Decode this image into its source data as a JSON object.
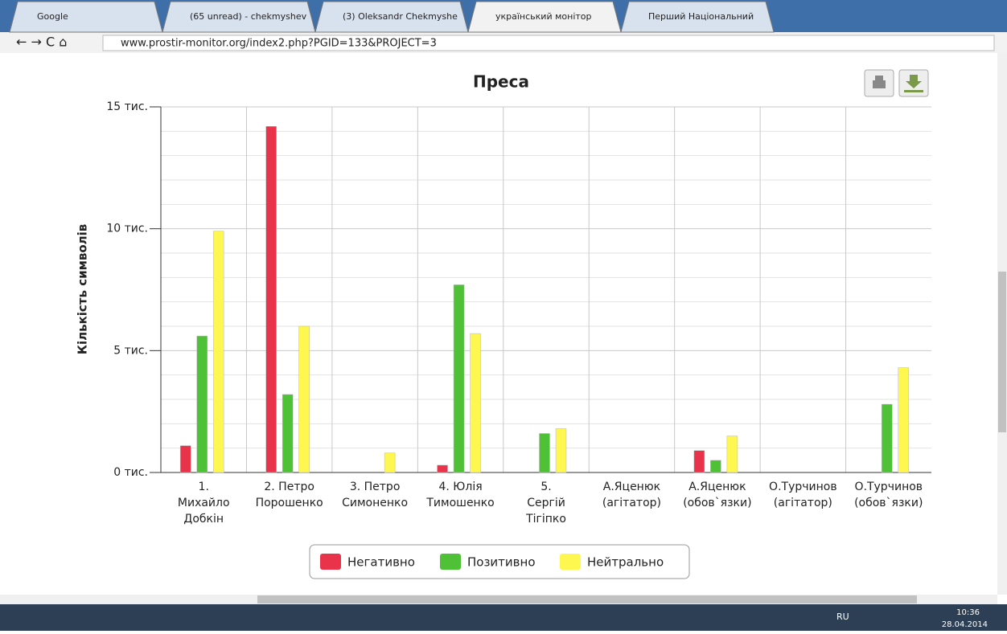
{
  "browser": {
    "tabs": [
      "Google",
      "(65 unread) - chekmyshev",
      "(3) Oleksandr Chekmyshe",
      "український монітор",
      "Перший Національний"
    ],
    "url": "www.prostir-monitor.org/index2.php?PGID=133&PROJECT=3"
  },
  "taskbar": {
    "lang": "RU",
    "time": "10:36",
    "date": "28.04.2014"
  },
  "chart_data": {
    "type": "bar",
    "title": "Преса",
    "y_label": "Кількість символів",
    "categories": [
      [
        "1.",
        "Михайло",
        "Добкін"
      ],
      [
        "2. Петро",
        "Порошенко"
      ],
      [
        "3. Петро",
        "Симоненко"
      ],
      [
        "4. Юлія",
        "Тимошенко"
      ],
      [
        "5.",
        "Сергій",
        "Тігіпко"
      ],
      [
        "А.Яценюк",
        "(агітатор)"
      ],
      [
        "А.Яценюк",
        "(обов`язки)"
      ],
      [
        "О.Турчинов",
        "(агітатор)"
      ],
      [
        "О.Турчинов",
        "(обов`язки)"
      ]
    ],
    "series": [
      {
        "name": "Негативно",
        "color": "#e8334a",
        "values": [
          1100,
          14200,
          0,
          300,
          0,
          0,
          900,
          0,
          0
        ]
      },
      {
        "name": "Позитивно",
        "color": "#4ec136",
        "values": [
          5600,
          3200,
          0,
          7700,
          1600,
          0,
          500,
          0,
          2800
        ]
      },
      {
        "name": "Нейтрально",
        "color": "#fdf74f",
        "values": [
          9900,
          6000,
          800,
          5700,
          1800,
          0,
          1500,
          0,
          4300
        ]
      }
    ],
    "ylim": [
      0,
      15000
    ],
    "yticks": [
      {
        "value": 0,
        "label": "0 тис."
      },
      {
        "value": 5000,
        "label": "5 тис."
      },
      {
        "value": 10000,
        "label": "10 тис."
      },
      {
        "value": 15000,
        "label": "15 тис."
      }
    ],
    "minor_yticks": [
      1000,
      2000,
      3000,
      4000,
      6000,
      7000,
      8000,
      9000,
      11000,
      12000,
      13000,
      14000
    ],
    "grid": true,
    "legend": "bottom"
  }
}
